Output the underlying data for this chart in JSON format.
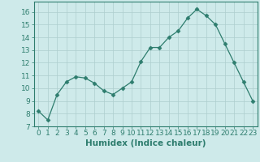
{
  "x": [
    0,
    1,
    2,
    3,
    4,
    5,
    6,
    7,
    8,
    9,
    10,
    11,
    12,
    13,
    14,
    15,
    16,
    17,
    18,
    19,
    20,
    21,
    22,
    23
  ],
  "y": [
    8.2,
    7.5,
    9.5,
    10.5,
    10.9,
    10.8,
    10.4,
    9.8,
    9.5,
    10.0,
    10.5,
    12.1,
    13.2,
    13.2,
    14.0,
    14.5,
    15.5,
    16.2,
    15.7,
    15.0,
    13.5,
    12.0,
    10.5,
    9.0
  ],
  "xlabel": "Humidex (Indice chaleur)",
  "line_color": "#2e7d6e",
  "marker": "D",
  "markersize": 2.5,
  "background_color": "#ceeaea",
  "grid_color": "#aecece",
  "xlim": [
    -0.5,
    23.5
  ],
  "ylim": [
    7,
    16.8
  ],
  "yticks": [
    7,
    8,
    9,
    10,
    11,
    12,
    13,
    14,
    15,
    16
  ],
  "xticks": [
    0,
    1,
    2,
    3,
    4,
    5,
    6,
    7,
    8,
    9,
    10,
    11,
    12,
    13,
    14,
    15,
    16,
    17,
    18,
    19,
    20,
    21,
    22,
    23
  ],
  "xtick_labels": [
    "0",
    "1",
    "2",
    "3",
    "4",
    "5",
    "6",
    "7",
    "8",
    "9",
    "10",
    "11",
    "12",
    "13",
    "14",
    "15",
    "16",
    "17",
    "18",
    "19",
    "20",
    "21",
    "22",
    "23"
  ],
  "tick_fontsize": 6.5,
  "xlabel_fontsize": 7.5
}
